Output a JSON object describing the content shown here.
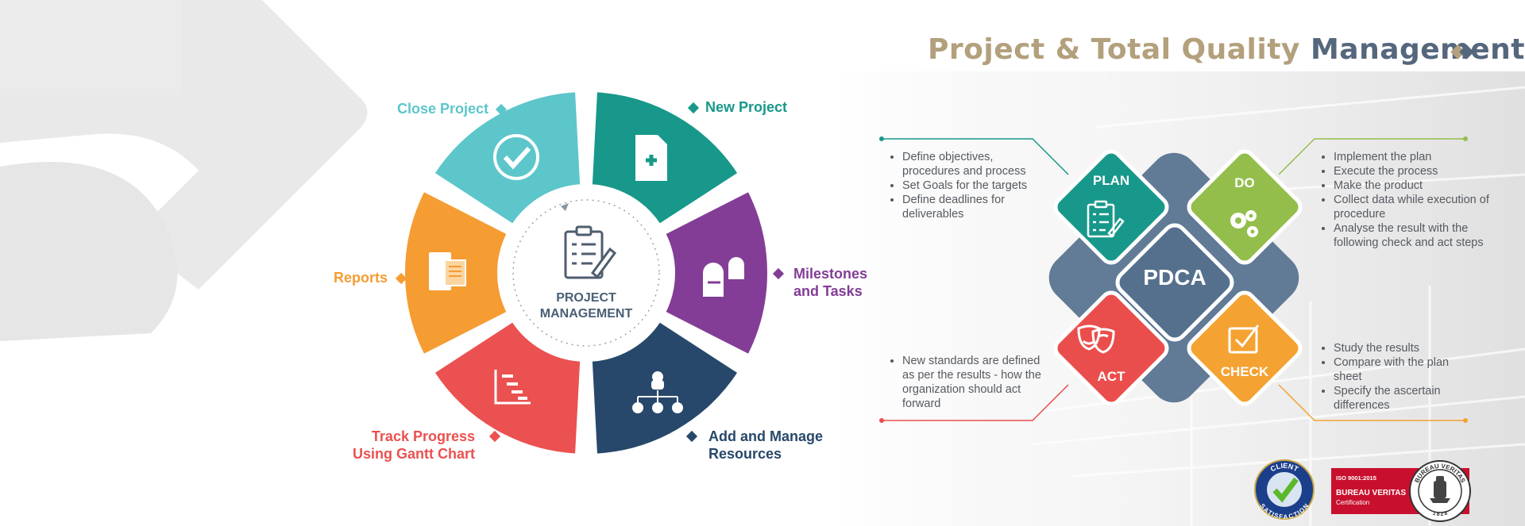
{
  "title": {
    "part1": "Project & Total Quality",
    "part2": "Management"
  },
  "wheel": {
    "center": {
      "line1": "PROJECT",
      "line2": "MANAGEMENT"
    },
    "labels": {
      "close_project": "Close Project",
      "new_project": "New Project",
      "milestones_line1": "Milestones",
      "milestones_line2": "and Tasks",
      "add_resources_line1": "Add and Manage",
      "add_resources_line2": "Resources",
      "track_line1": "Track Progress",
      "track_line2": "Using Gantt Chart",
      "reports": "Reports"
    }
  },
  "pdca": {
    "center": "PDCA",
    "plan": {
      "label": "PLAN",
      "items": [
        "Define objectives, procedures and process",
        "Set Goals for the targets",
        "Define deadlines for deliverables"
      ]
    },
    "do": {
      "label": "DO",
      "items": [
        "Implement the plan",
        "Execute the process",
        "Make the product",
        "Collect data while execution of procedure",
        "Analyse the result with the following check and act steps"
      ]
    },
    "act": {
      "label": "ACT",
      "items": [
        "New standards are defined as per the results - how the organization should act forward"
      ]
    },
    "check": {
      "label": "CHECK",
      "items": [
        "Study the results",
        "Compare with the plan sheet",
        "Specify the ascertain differences"
      ]
    }
  },
  "badges": {
    "client_line1": "CLIENT",
    "client_line2": "SATISFACTION",
    "iso": "ISO 9001:2015",
    "bv_name": "BUREAU VERITAS",
    "bv_cert": "Certification",
    "bv_ring": "BUREAU VERITAS",
    "bv_year": "1828"
  },
  "colors": {
    "teal": "#17988a",
    "light_teal": "#5cc6cb",
    "purple": "#833d96",
    "navy": "#27486a",
    "red": "#ea5150",
    "orange": "#f59c33",
    "slate": "#55708d",
    "green": "#94be4c",
    "amber": "#f4a231",
    "act_red": "#ea4e4c"
  }
}
